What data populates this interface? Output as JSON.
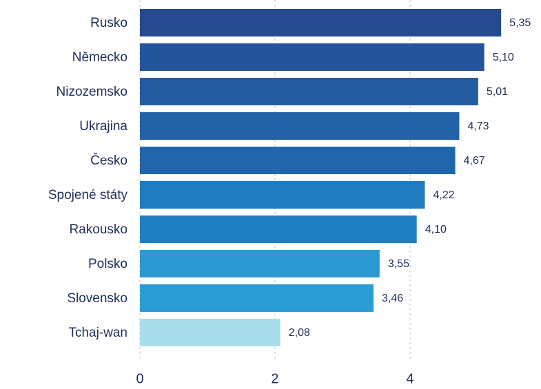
{
  "chart_data": {
    "type": "bar",
    "orientation": "horizontal",
    "categories": [
      "Rusko",
      "Německo",
      "Nizozemsko",
      "Ukrajina",
      "Česko",
      "Spojené státy",
      "Rakousko",
      "Polsko",
      "Slovensko",
      "Tchaj-wan"
    ],
    "values": [
      5.35,
      5.1,
      5.01,
      4.73,
      4.67,
      4.22,
      4.1,
      3.55,
      3.46,
      2.08
    ],
    "value_labels": [
      "5,35",
      "5,10",
      "5,01",
      "4,73",
      "4,67",
      "4,22",
      "4,10",
      "3,55",
      "3,46",
      "2,08"
    ],
    "colors": [
      "#264a8f",
      "#24559b",
      "#245ca2",
      "#2262a8",
      "#2166ab",
      "#1f7abf",
      "#1f7fc2",
      "#2b9ad4",
      "#2b9cd5",
      "#a8dde9"
    ],
    "xlim": [
      0,
      5.94
    ],
    "xticks": [
      0,
      2,
      4
    ],
    "grid": true
  }
}
